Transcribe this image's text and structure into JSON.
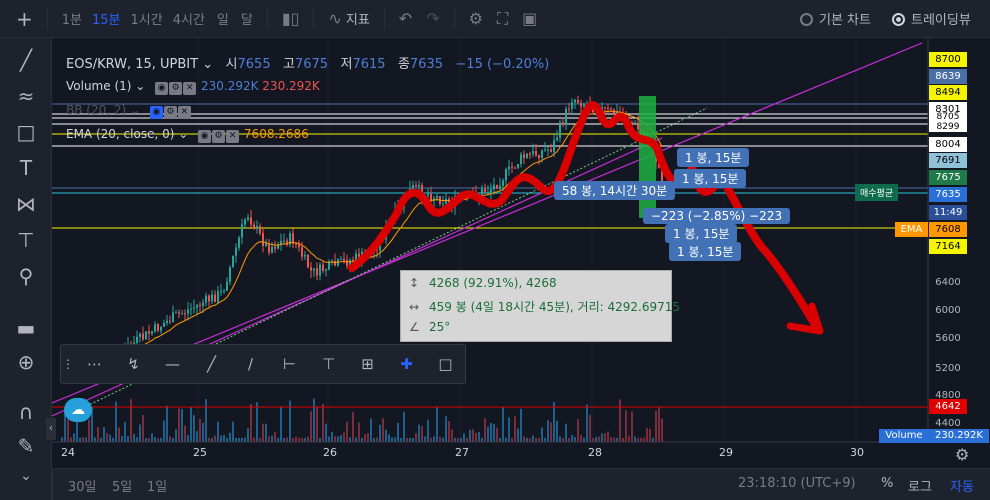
{
  "toolbar": {
    "intervals": [
      "1분",
      "15분",
      "1시간",
      "4시간",
      "일",
      "달"
    ],
    "active_interval": "15분",
    "indicators_label": "지표",
    "basic_chart_label": "기본 차트",
    "tradingview_label": "트레이딩뷰"
  },
  "legend": {
    "symbol": "EOS/KRW, 15, UPBIT",
    "open_label": "시",
    "open": "7655",
    "high_label": "고",
    "high": "7675",
    "low_label": "저",
    "low": "7615",
    "close_label": "종",
    "close": "7635",
    "change": "−15 (−0.20%)",
    "volume_label": "Volume (1)",
    "volume_v1": "230.292K",
    "volume_v2": "230.292K",
    "bb_label": "BB (20, 2)",
    "ema_label": "EMA (20, close, 0)",
    "ema_value": "7608.2686"
  },
  "price_axis": {
    "ticks": [
      "8700",
      "8494",
      "8301",
      "8004",
      "6400",
      "6000",
      "5600",
      "5200",
      "4800",
      "4400"
    ],
    "tags": {
      "p8639": "8639",
      "p8705": "8705",
      "p8299": "8299",
      "p7691": "7691",
      "p7675": "7675",
      "p7635": "7635",
      "countdown": "11:49",
      "p7608": "7608",
      "p7164": "7164",
      "p4642": "4642"
    },
    "ema_tag": "EMA",
    "volume_tag": "Volume",
    "volume_value": "230.292K"
  },
  "time_axis": [
    "24",
    "25",
    "26",
    "27",
    "28",
    "29",
    "30"
  ],
  "measurements": {
    "tag1": "1 봉, 15분",
    "tag2": "1 봉, 15분",
    "tag3": "58 봉, 14시간 30분",
    "tag4": "−223 (−2.85%) −223",
    "tag5": "1 봉, 15분",
    "tag6": "1 봉, 15분",
    "avg_label": "매수평균"
  },
  "infobox": {
    "line1": "4268 (92.91%), 4268",
    "line2": "459 봉 (4일 18시간 45분), 거리: 4292.69715",
    "line3": "25°"
  },
  "drawbar_tools": [
    "drag-handle",
    "trend-tool",
    "brush",
    "horizontal-ray",
    "trend-line",
    "extended-line",
    "date-range",
    "price-range",
    "date-price-range",
    "crosshair",
    "rectangle"
  ],
  "bottom": {
    "ranges": [
      "30일",
      "5일",
      "1일"
    ],
    "clock": "23:18:10 (UTC+9)",
    "percent": "%",
    "log": "로그",
    "auto": "자동"
  },
  "colors": {
    "bg": "#131722",
    "up": "#26a69a",
    "down": "#ef5350",
    "accent": "#2962ff",
    "drawing": "#e00000",
    "trendline": "#c62fd6"
  }
}
